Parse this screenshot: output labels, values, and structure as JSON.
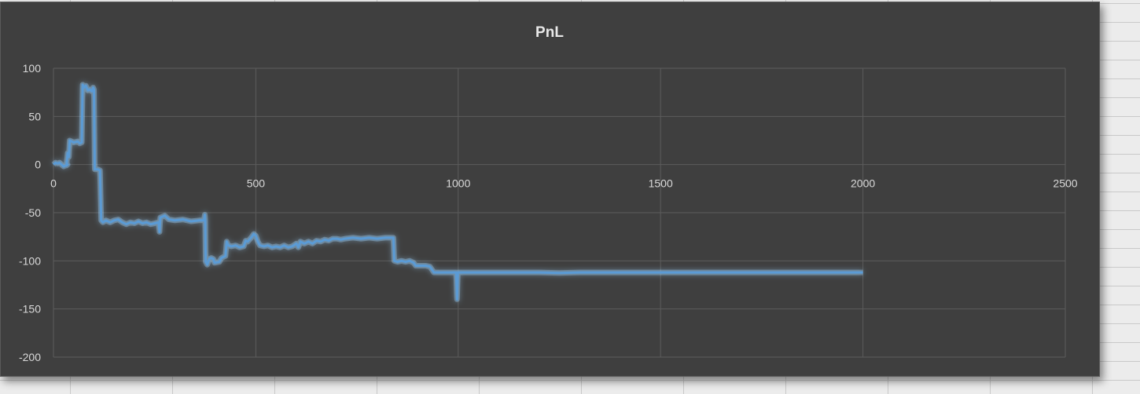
{
  "chart_data": {
    "type": "line",
    "title": "PnL",
    "xlabel": "",
    "ylabel": "",
    "xlim": [
      0,
      2500
    ],
    "ylim": [
      -200,
      100
    ],
    "xticks": [
      0,
      500,
      1000,
      1500,
      2000,
      2500
    ],
    "yticks": [
      100,
      50,
      0,
      -50,
      -100,
      -150,
      -200
    ],
    "xtick_labels": [
      "0",
      "500",
      "1000",
      "1500",
      "2000",
      "2500"
    ],
    "ytick_labels": [
      "100",
      "50",
      "0",
      "-50",
      "-100",
      "-150",
      "-200"
    ],
    "grid": true,
    "legend": "none",
    "colors": {
      "line": "#5b9bd5",
      "glow": "#9fd3ff",
      "background": "#3f3f3f",
      "grid": "#5c5c5c",
      "text": "#d9d9d9"
    },
    "series": [
      {
        "points": [
          [
            0,
            0
          ],
          [
            5,
            2
          ],
          [
            10,
            1
          ],
          [
            15,
            2
          ],
          [
            20,
            0
          ],
          [
            25,
            -2
          ],
          [
            30,
            -1
          ],
          [
            35,
            0
          ],
          [
            32,
            -1
          ],
          [
            35,
            12
          ],
          [
            38,
            8
          ],
          [
            40,
            25
          ],
          [
            45,
            24
          ],
          [
            50,
            23
          ],
          [
            60,
            24
          ],
          [
            65,
            22
          ],
          [
            70,
            23
          ],
          [
            72,
            83
          ],
          [
            76,
            80
          ],
          [
            80,
            82
          ],
          [
            85,
            77
          ],
          [
            90,
            78
          ],
          [
            95,
            76
          ],
          [
            98,
            80
          ],
          [
            100,
            78
          ],
          [
            102,
            -5
          ],
          [
            105,
            -5
          ],
          [
            110,
            -5
          ],
          [
            115,
            -6
          ],
          [
            118,
            -58
          ],
          [
            122,
            -60
          ],
          [
            130,
            -58
          ],
          [
            140,
            -60
          ],
          [
            150,
            -58
          ],
          [
            160,
            -57
          ],
          [
            170,
            -60
          ],
          [
            180,
            -62
          ],
          [
            190,
            -60
          ],
          [
            200,
            -61
          ],
          [
            210,
            -59
          ],
          [
            220,
            -61
          ],
          [
            230,
            -60
          ],
          [
            240,
            -62
          ],
          [
            250,
            -61
          ],
          [
            260,
            -60
          ],
          [
            262,
            -70
          ],
          [
            264,
            -55
          ],
          [
            270,
            -54
          ],
          [
            275,
            -53
          ],
          [
            280,
            -55
          ],
          [
            285,
            -57
          ],
          [
            300,
            -58
          ],
          [
            320,
            -57
          ],
          [
            340,
            -59
          ],
          [
            360,
            -58
          ],
          [
            372,
            -58
          ],
          [
            374,
            -52
          ],
          [
            375,
            -58
          ],
          [
            376,
            -101
          ],
          [
            380,
            -104
          ],
          [
            385,
            -98
          ],
          [
            390,
            -97
          ],
          [
            395,
            -98
          ],
          [
            398,
            -102
          ],
          [
            410,
            -101
          ],
          [
            415,
            -97
          ],
          [
            420,
            -96
          ],
          [
            425,
            -95
          ],
          [
            428,
            -80
          ],
          [
            432,
            -84
          ],
          [
            440,
            -85
          ],
          [
            450,
            -84
          ],
          [
            460,
            -86
          ],
          [
            470,
            -85
          ],
          [
            475,
            -79
          ],
          [
            480,
            -80
          ],
          [
            490,
            -75
          ],
          [
            495,
            -72
          ],
          [
            500,
            -74
          ],
          [
            505,
            -80
          ],
          [
            510,
            -84
          ],
          [
            520,
            -85
          ],
          [
            530,
            -84
          ],
          [
            540,
            -86
          ],
          [
            550,
            -85
          ],
          [
            560,
            -86
          ],
          [
            570,
            -84
          ],
          [
            580,
            -86
          ],
          [
            590,
            -85
          ],
          [
            600,
            -82
          ],
          [
            605,
            -86
          ],
          [
            610,
            -80
          ],
          [
            620,
            -82
          ],
          [
            630,
            -80
          ],
          [
            640,
            -82
          ],
          [
            650,
            -79
          ],
          [
            660,
            -80
          ],
          [
            670,
            -78
          ],
          [
            680,
            -79
          ],
          [
            690,
            -77
          ],
          [
            700,
            -77
          ],
          [
            710,
            -78
          ],
          [
            720,
            -77
          ],
          [
            740,
            -76
          ],
          [
            760,
            -77
          ],
          [
            780,
            -76
          ],
          [
            800,
            -77
          ],
          [
            820,
            -76
          ],
          [
            840,
            -76
          ],
          [
            842,
            -100
          ],
          [
            850,
            -101
          ],
          [
            860,
            -100
          ],
          [
            870,
            -101
          ],
          [
            880,
            -100
          ],
          [
            890,
            -102
          ],
          [
            895,
            -105
          ],
          [
            910,
            -105
          ],
          [
            920,
            -105
          ],
          [
            930,
            -106
          ],
          [
            940,
            -112
          ],
          [
            960,
            -112
          ],
          [
            980,
            -112
          ],
          [
            995,
            -112
          ],
          [
            997,
            -140
          ],
          [
            999,
            -112
          ],
          [
            1050,
            -112
          ],
          [
            1100,
            -112
          ],
          [
            1150,
            -112
          ],
          [
            1200,
            -112
          ],
          [
            1250,
            -112.5
          ],
          [
            1300,
            -112
          ],
          [
            1400,
            -112
          ],
          [
            1500,
            -112
          ],
          [
            1600,
            -112
          ],
          [
            1700,
            -112
          ],
          [
            1800,
            -112
          ],
          [
            1900,
            -112
          ],
          [
            1950,
            -112
          ],
          [
            2000,
            -112
          ]
        ]
      }
    ]
  }
}
